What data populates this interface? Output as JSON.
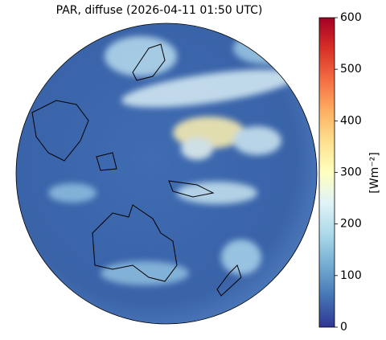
{
  "title": "PAR, diffuse (2026-04-11 01:50 UTC)",
  "colorbar": {
    "label": "[Wm⁻²]",
    "lim": [
      0,
      600
    ],
    "ticks": [
      0,
      100,
      200,
      300,
      400,
      500,
      600
    ]
  }
}
